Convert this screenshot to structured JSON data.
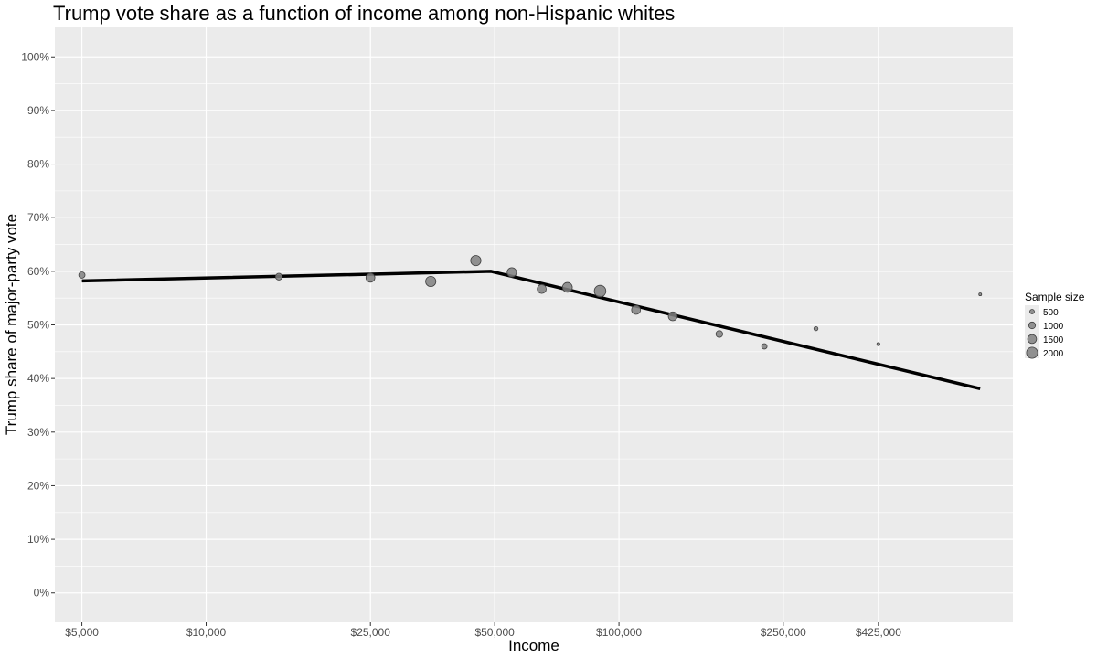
{
  "chart_data": {
    "type": "scatter",
    "title": "Trump vote share as a function of income among non-Hispanic whites",
    "xlabel": "Income",
    "ylabel": "Trump share of major-party vote",
    "x_scale": "log",
    "xlim": [
      4300,
      900000
    ],
    "ylim": [
      -0.055,
      1.055
    ],
    "x_ticks": [
      {
        "value": 5000,
        "label": "$5,000"
      },
      {
        "value": 10000,
        "label": "$10,000"
      },
      {
        "value": 25000,
        "label": "$25,000"
      },
      {
        "value": 50000,
        "label": "$50,000"
      },
      {
        "value": 100000,
        "label": "$100,000"
      },
      {
        "value": 250000,
        "label": "$250,000"
      },
      {
        "value": 425000,
        "label": "$425,000"
      }
    ],
    "y_ticks": [
      {
        "value": 0.0,
        "label": "0%"
      },
      {
        "value": 0.1,
        "label": "10%"
      },
      {
        "value": 0.2,
        "label": "20%"
      },
      {
        "value": 0.3,
        "label": "30%"
      },
      {
        "value": 0.4,
        "label": "40%"
      },
      {
        "value": 0.5,
        "label": "50%"
      },
      {
        "value": 0.6,
        "label": "60%"
      },
      {
        "value": 0.7,
        "label": "70%"
      },
      {
        "value": 0.8,
        "label": "80%"
      },
      {
        "value": 0.9,
        "label": "90%"
      },
      {
        "value": 1.0,
        "label": "100%"
      }
    ],
    "points": [
      {
        "x": 5000,
        "y": 0.593,
        "n": 900
      },
      {
        "x": 15000,
        "y": 0.59,
        "n": 1000
      },
      {
        "x": 25000,
        "y": 0.588,
        "n": 1500
      },
      {
        "x": 35000,
        "y": 0.581,
        "n": 1800
      },
      {
        "x": 45000,
        "y": 0.62,
        "n": 1800
      },
      {
        "x": 55000,
        "y": 0.598,
        "n": 1600
      },
      {
        "x": 65000,
        "y": 0.567,
        "n": 1500
      },
      {
        "x": 75000,
        "y": 0.57,
        "n": 1700
      },
      {
        "x": 90000,
        "y": 0.563,
        "n": 2100
      },
      {
        "x": 110000,
        "y": 0.528,
        "n": 1500
      },
      {
        "x": 135000,
        "y": 0.516,
        "n": 1500
      },
      {
        "x": 175000,
        "y": 0.483,
        "n": 1000
      },
      {
        "x": 225000,
        "y": 0.46,
        "n": 700
      },
      {
        "x": 300000,
        "y": 0.493,
        "n": 400
      },
      {
        "x": 425000,
        "y": 0.464,
        "n": 150
      },
      {
        "x": 750000,
        "y": 0.557,
        "n": 100
      }
    ],
    "fit_line": [
      {
        "x": 5000,
        "y": 0.582
      },
      {
        "x": 49000,
        "y": 0.6
      },
      {
        "x": 750000,
        "y": 0.381
      }
    ],
    "legend": {
      "title": "Sample size",
      "position": "right",
      "items": [
        {
          "label": "500",
          "n": 500
        },
        {
          "label": "1000",
          "n": 1000
        },
        {
          "label": "1500",
          "n": 1500
        },
        {
          "label": "2000",
          "n": 2000
        }
      ]
    },
    "colors": {
      "panel": "#ebebeb",
      "grid": "#ffffff",
      "point_fill": "#808080",
      "point_stroke": "#404040",
      "line": "#000000"
    },
    "grid": true
  }
}
